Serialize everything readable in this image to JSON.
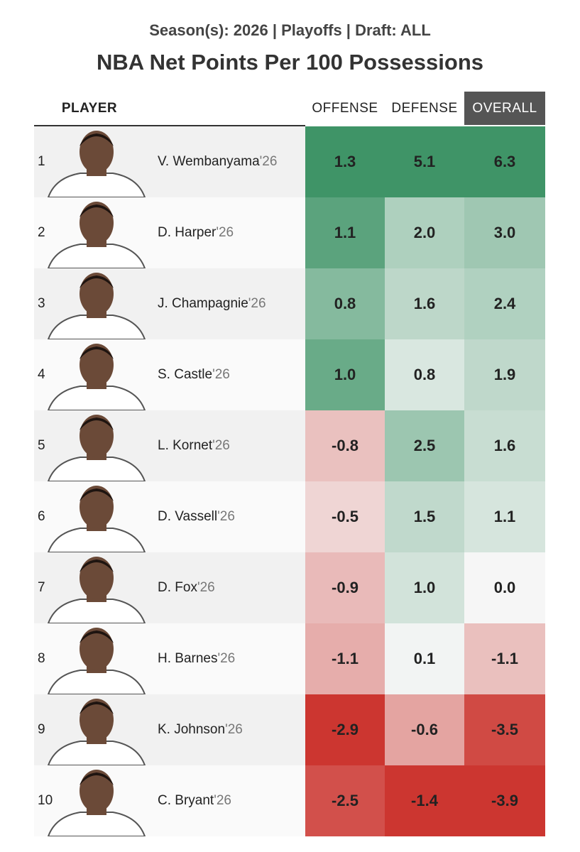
{
  "header": {
    "subtitle": "Season(s): 2026 | Playoffs | Draft: ALL",
    "title": "NBA Net Points Per 100 Possessions"
  },
  "table": {
    "columns": [
      "PLAYER",
      "OFFENSE",
      "DEFENSE",
      "OVERALL"
    ],
    "positive_color": "#3f9467",
    "negative_color": "#cc3630",
    "neutral_color": "#f6f6f6",
    "rows": [
      {
        "rank": "1",
        "name": "V. Wembanyama",
        "year": "'26",
        "offense": "1.3",
        "defense": "5.1",
        "overall": "6.3"
      },
      {
        "rank": "2",
        "name": "D. Harper",
        "year": "'26",
        "offense": "1.1",
        "defense": "2.0",
        "overall": "3.0"
      },
      {
        "rank": "3",
        "name": "J. Champagnie",
        "year": "'26",
        "offense": "0.8",
        "defense": "1.6",
        "overall": "2.4"
      },
      {
        "rank": "4",
        "name": "S. Castle",
        "year": "'26",
        "offense": "1.0",
        "defense": "0.8",
        "overall": "1.9"
      },
      {
        "rank": "5",
        "name": "L. Kornet",
        "year": "'26",
        "offense": "-0.8",
        "defense": "2.5",
        "overall": "1.6"
      },
      {
        "rank": "6",
        "name": "D. Vassell",
        "year": "'26",
        "offense": "-0.5",
        "defense": "1.5",
        "overall": "1.1"
      },
      {
        "rank": "7",
        "name": "D. Fox",
        "year": "'26",
        "offense": "-0.9",
        "defense": "1.0",
        "overall": "0.0"
      },
      {
        "rank": "8",
        "name": "H. Barnes",
        "year": "'26",
        "offense": "-1.1",
        "defense": "0.1",
        "overall": "-1.1"
      },
      {
        "rank": "9",
        "name": "K. Johnson",
        "year": "'26",
        "offense": "-2.9",
        "defense": "-0.6",
        "overall": "-3.5"
      },
      {
        "rank": "10",
        "name": "C. Bryant",
        "year": "'26",
        "offense": "-2.5",
        "defense": "-1.4",
        "overall": "-3.9"
      }
    ]
  }
}
